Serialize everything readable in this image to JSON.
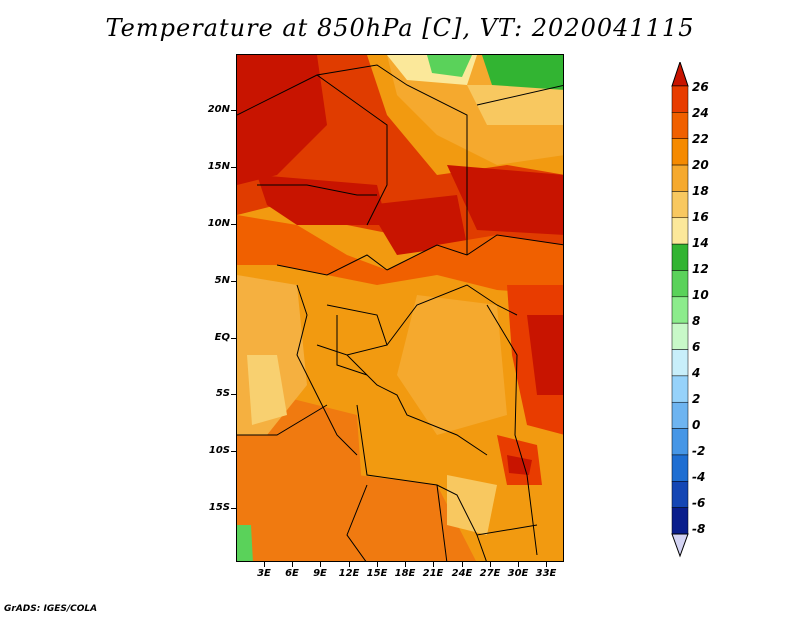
{
  "title": "Temperature at 850hPa [C], VT: 2020041115",
  "lat_labels": [
    "20N",
    "15N",
    "10N",
    "5N",
    "EQ",
    "5S",
    "10S",
    "15S"
  ],
  "lon_labels": [
    "3E",
    "6E",
    "9E",
    "12E",
    "15E",
    "18E",
    "21E",
    "24E",
    "27E",
    "30E",
    "33E"
  ],
  "colorbar": {
    "labels": [
      "26",
      "24",
      "22",
      "20",
      "18",
      "16",
      "14",
      "12",
      "10",
      "8",
      "6",
      "4",
      "2",
      "0",
      "-2",
      "-4",
      "-6",
      "-8"
    ],
    "colors": [
      "#c81400",
      "#e83c00",
      "#f06000",
      "#f58a00",
      "#f5a92e",
      "#f8c860",
      "#fbe89a",
      "#32b432",
      "#5ad25a",
      "#8cec8c",
      "#c8f8c8",
      "#c8eefa",
      "#96d2fa",
      "#6eb4f0",
      "#4696e6",
      "#1e6ed2",
      "#1446b4",
      "#0a1e8c",
      "#0a0a5a"
    ],
    "over_color": "#c81400",
    "under_color": "#d4d4f4"
  },
  "footer": "GrADS: IGES/COLA"
}
